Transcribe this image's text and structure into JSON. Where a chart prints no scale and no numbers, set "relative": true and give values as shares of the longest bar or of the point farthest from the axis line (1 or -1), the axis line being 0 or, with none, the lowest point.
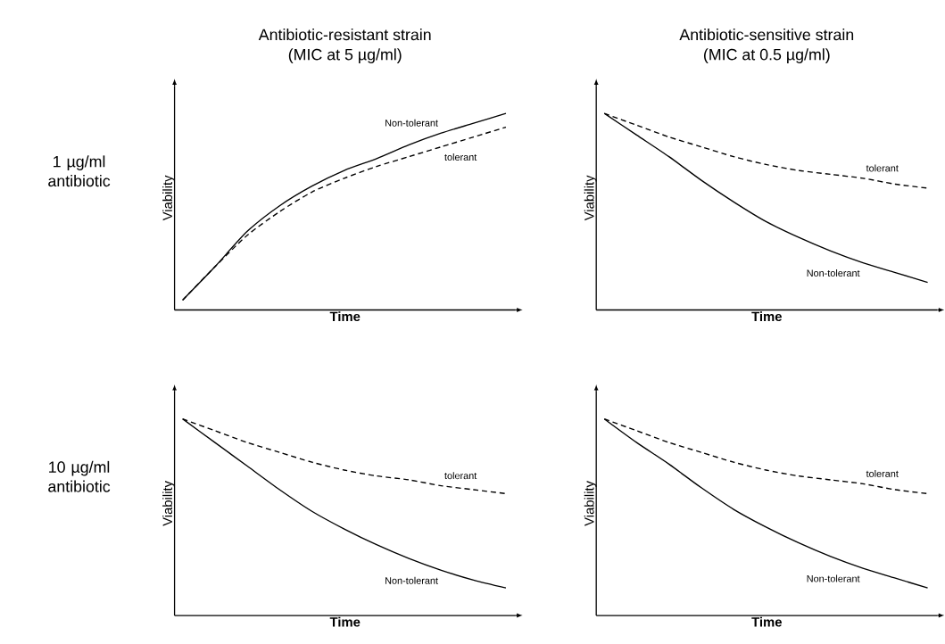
{
  "chart_data": [
    {
      "type": "line",
      "relative": true,
      "tick_labels": false,
      "title": "Antibiotic-resistant strain",
      "subtitle": "(MIC at 5 µg/ml)",
      "annotations": [
        "1 µg/ml antibiotic"
      ],
      "xlabel": "Time",
      "ylabel": "Viability",
      "categories": [
        null,
        null,
        null,
        null,
        null,
        null,
        null,
        null,
        null,
        null,
        null
      ],
      "series": [
        {
          "name": "Non-tolerant",
          "color": "#000000",
          "line_style": "solid",
          "values": [
            0.05,
            0.22,
            0.4,
            0.53,
            0.63,
            0.71,
            0.77,
            0.84,
            0.9,
            0.95,
            1
          ]
        },
        {
          "name": "tolerant",
          "color": "#000000",
          "line_style": "dashed",
          "values": [
            0.05,
            0.22,
            0.38,
            0.5,
            0.6,
            0.67,
            0.73,
            0.78,
            0.83,
            0.88,
            0.93
          ]
        }
      ]
    },
    {
      "type": "line",
      "relative": true,
      "tick_labels": false,
      "title": "Antibiotic-sensitive strain",
      "subtitle": "(MIC at 0.5 µg/ml)",
      "xlabel": "Time",
      "ylabel": "Viability",
      "categories": [
        null,
        null,
        null,
        null,
        null,
        null,
        null,
        null,
        null,
        null,
        null
      ],
      "series": [
        {
          "name": "tolerant",
          "color": "#000000",
          "line_style": "dashed",
          "values": [
            1,
            0.94,
            0.88,
            0.83,
            0.78,
            0.74,
            0.71,
            0.69,
            0.67,
            0.64,
            0.62
          ]
        },
        {
          "name": "Non-tolerant",
          "color": "#000000",
          "line_style": "solid",
          "values": [
            1,
            0.89,
            0.78,
            0.66,
            0.55,
            0.45,
            0.37,
            0.3,
            0.24,
            0.19,
            0.14
          ]
        }
      ]
    },
    {
      "type": "line",
      "relative": true,
      "tick_labels": false,
      "annotations": [
        "10 µg/ml antibiotic"
      ],
      "xlabel": "Time",
      "ylabel": "Viability",
      "categories": [
        null,
        null,
        null,
        null,
        null,
        null,
        null,
        null,
        null,
        null,
        null
      ],
      "series": [
        {
          "name": "tolerant",
          "color": "#000000",
          "line_style": "dashed",
          "values": [
            1,
            0.94,
            0.88,
            0.83,
            0.78,
            0.74,
            0.71,
            0.69,
            0.66,
            0.64,
            0.62
          ]
        },
        {
          "name": "Non-tolerant",
          "color": "#000000",
          "line_style": "solid",
          "values": [
            1,
            0.88,
            0.76,
            0.64,
            0.53,
            0.44,
            0.36,
            0.29,
            0.23,
            0.18,
            0.14
          ]
        }
      ]
    },
    {
      "type": "line",
      "relative": true,
      "tick_labels": false,
      "xlabel": "Time",
      "ylabel": "Viability",
      "categories": [
        null,
        null,
        null,
        null,
        null,
        null,
        null,
        null,
        null,
        null,
        null
      ],
      "series": [
        {
          "name": "tolerant",
          "color": "#000000",
          "line_style": "dashed",
          "values": [
            1,
            0.94,
            0.88,
            0.83,
            0.78,
            0.74,
            0.71,
            0.69,
            0.67,
            0.64,
            0.62
          ]
        },
        {
          "name": "Non-tolerant",
          "color": "#000000",
          "line_style": "solid",
          "values": [
            1,
            0.88,
            0.77,
            0.65,
            0.54,
            0.45,
            0.37,
            0.3,
            0.24,
            0.19,
            0.14
          ]
        }
      ]
    }
  ]
}
